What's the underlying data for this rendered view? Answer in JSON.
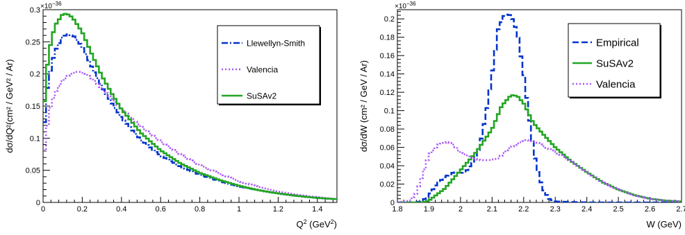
{
  "chart_data": [
    {
      "type": "line",
      "id": "left",
      "title": "",
      "xlabel": "Q",
      "xlabel_sup": "2",
      "xlabel_unit": " (GeV",
      "xlabel_unit_sup": "2",
      "xlabel_close": ")",
      "ylabel": "dσ/dQ²(cm² / GeV² / Ar)",
      "yexp": "×10",
      "yexp_sup": "−36",
      "xlim": [
        0,
        1.5
      ],
      "ylim": [
        0,
        0.3
      ],
      "xticks": [
        0,
        0.2,
        0.4,
        0.6,
        0.8,
        1,
        1.2,
        1.4
      ],
      "xtick_labels": [
        "0",
        "0.2",
        "0.4",
        "0.6",
        "0.8",
        "1",
        "1.2",
        "1.4"
      ],
      "yticks": [
        0,
        0.05,
        0.1,
        0.15,
        0.2,
        0.25,
        0.3
      ],
      "ytick_labels": [
        "0",
        "0.05",
        "0.1",
        "0.15",
        "0.2",
        "0.25",
        "0.3"
      ],
      "legend": "top-right",
      "series": [
        {
          "name": "Llewellyn-Smith",
          "color": "#0033cc",
          "dash": "dashdot",
          "x": [
            0,
            0.01,
            0.03,
            0.06,
            0.1,
            0.13,
            0.16,
            0.2,
            0.25,
            0.3,
            0.35,
            0.4,
            0.5,
            0.6,
            0.7,
            0.8,
            0.9,
            1.0,
            1.1,
            1.2,
            1.3,
            1.4,
            1.5
          ],
          "y": [
            0.05,
            0.15,
            0.195,
            0.235,
            0.258,
            0.262,
            0.258,
            0.242,
            0.21,
            0.18,
            0.155,
            0.132,
            0.097,
            0.073,
            0.056,
            0.043,
            0.033,
            0.025,
            0.019,
            0.014,
            0.01,
            0.007,
            0.005
          ]
        },
        {
          "name": "Valencia",
          "color": "#a855f7",
          "dash": "dot",
          "x": [
            0,
            0.01,
            0.03,
            0.06,
            0.1,
            0.14,
            0.18,
            0.22,
            0.26,
            0.3,
            0.35,
            0.4,
            0.5,
            0.6,
            0.7,
            0.8,
            0.9,
            1.0,
            1.1,
            1.2,
            1.3,
            1.4,
            1.5
          ],
          "y": [
            0.07,
            0.085,
            0.14,
            0.17,
            0.19,
            0.2,
            0.204,
            0.2,
            0.19,
            0.177,
            0.162,
            0.146,
            0.118,
            0.095,
            0.075,
            0.058,
            0.045,
            0.033,
            0.024,
            0.017,
            0.012,
            0.008,
            0.005
          ]
        },
        {
          "name": "SuSAv2",
          "color": "#22a522",
          "dash": "solid",
          "x": [
            0,
            0.01,
            0.03,
            0.06,
            0.1,
            0.12,
            0.15,
            0.2,
            0.25,
            0.3,
            0.35,
            0.4,
            0.5,
            0.6,
            0.7,
            0.8,
            0.9,
            1.0,
            1.1,
            1.2,
            1.3,
            1.4,
            1.5
          ],
          "y": [
            0.09,
            0.18,
            0.235,
            0.275,
            0.293,
            0.294,
            0.288,
            0.265,
            0.23,
            0.197,
            0.17,
            0.145,
            0.108,
            0.081,
            0.061,
            0.046,
            0.035,
            0.026,
            0.019,
            0.014,
            0.01,
            0.007,
            0.005
          ]
        }
      ]
    },
    {
      "type": "line",
      "id": "right",
      "title": "",
      "xlabel": "W (GeV)",
      "ylabel": "dσ/dW (cm² / GeV / Ar)",
      "yexp": "×10",
      "yexp_sup": "−36",
      "xlim": [
        1.8,
        2.7
      ],
      "ylim": [
        0,
        0.21
      ],
      "xticks": [
        1.8,
        1.9,
        2.0,
        2.1,
        2.2,
        2.3,
        2.4,
        2.5,
        2.6,
        2.7
      ],
      "xtick_labels": [
        "1.8",
        "1.9",
        "2",
        "2.1",
        "2.2",
        "2.3",
        "2.4",
        "2.5",
        "2.6",
        "2.7"
      ],
      "yticks": [
        0,
        0.02,
        0.04,
        0.06,
        0.08,
        0.1,
        0.12,
        0.14,
        0.16,
        0.18,
        0.2
      ],
      "ytick_labels": [
        "0",
        "0.02",
        "0.04",
        "0.06",
        "0.08",
        "0.1",
        "0.12",
        "0.14",
        "0.16",
        "0.18",
        "0.2"
      ],
      "legend": "top-right",
      "series": [
        {
          "name": "Empirical",
          "color": "#0033cc",
          "dash": "dash",
          "x": [
            1.8,
            1.86,
            1.88,
            1.9,
            1.92,
            1.95,
            1.98,
            2.0,
            2.02,
            2.04,
            2.06,
            2.08,
            2.1,
            2.12,
            2.14,
            2.16,
            2.18,
            2.2,
            2.22,
            2.24,
            2.26,
            2.28,
            2.3,
            2.4,
            2.7
          ],
          "y": [
            0,
            0,
            0.002,
            0.008,
            0.018,
            0.028,
            0.033,
            0.032,
            0.035,
            0.044,
            0.06,
            0.095,
            0.14,
            0.19,
            0.205,
            0.204,
            0.185,
            0.14,
            0.085,
            0.04,
            0.015,
            0.004,
            0.001,
            0,
            0
          ]
        },
        {
          "name": "SuSAv2",
          "color": "#22a522",
          "dash": "solid",
          "x": [
            1.8,
            1.88,
            1.9,
            1.95,
            2.0,
            2.05,
            2.1,
            2.13,
            2.16,
            2.18,
            2.2,
            2.23,
            2.26,
            2.3,
            2.35,
            2.4,
            2.45,
            2.5,
            2.55,
            2.6,
            2.65,
            2.7
          ],
          "y": [
            0,
            0,
            0.002,
            0.015,
            0.035,
            0.055,
            0.08,
            0.105,
            0.117,
            0.116,
            0.108,
            0.087,
            0.075,
            0.06,
            0.045,
            0.033,
            0.022,
            0.014,
            0.008,
            0.004,
            0.002,
            0.001
          ]
        },
        {
          "name": "Valencia",
          "color": "#a855f7",
          "dash": "dot",
          "x": [
            1.8,
            1.84,
            1.86,
            1.88,
            1.9,
            1.93,
            1.96,
            1.98,
            2.0,
            2.03,
            2.06,
            2.09,
            2.12,
            2.15,
            2.18,
            2.21,
            2.24,
            2.27,
            2.3,
            2.35,
            2.4,
            2.45,
            2.5,
            2.55,
            2.6,
            2.65,
            2.7
          ],
          "y": [
            0,
            0.002,
            0.01,
            0.03,
            0.052,
            0.063,
            0.066,
            0.062,
            0.054,
            0.05,
            0.046,
            0.046,
            0.048,
            0.058,
            0.064,
            0.068,
            0.066,
            0.06,
            0.055,
            0.045,
            0.033,
            0.022,
            0.014,
            0.008,
            0.004,
            0.002,
            0.001
          ]
        }
      ]
    }
  ]
}
